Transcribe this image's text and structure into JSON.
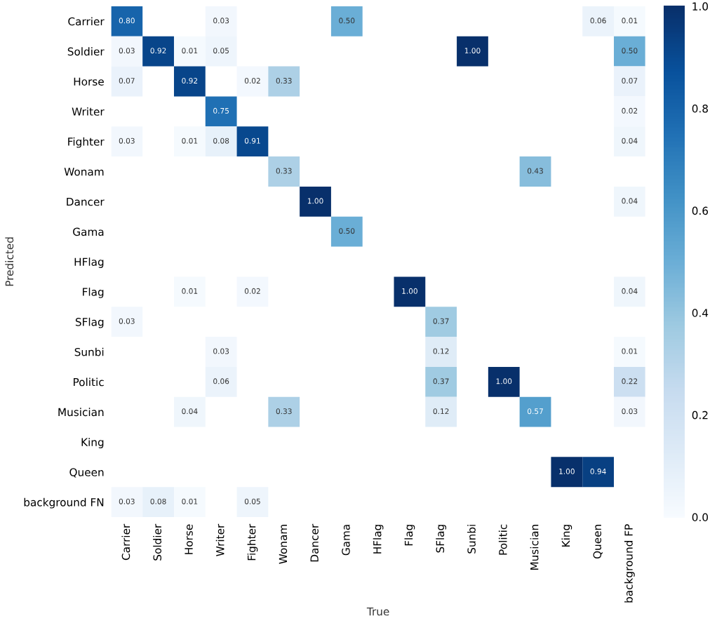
{
  "chart_data": {
    "type": "heatmap",
    "xlabel": "True",
    "ylabel": "Predicted",
    "categories": [
      "Carrier",
      "Soldier",
      "Horse",
      "Writer",
      "Fighter",
      "Wonam",
      "Dancer",
      "Gama",
      "HFlag",
      "Flag",
      "SFlag",
      "Sunbi",
      "Politic",
      "Musician",
      "King",
      "Queen",
      "background FP"
    ],
    "y_categories": [
      "Carrier",
      "Soldier",
      "Horse",
      "Writer",
      "Fighter",
      "Wonam",
      "Dancer",
      "Gama",
      "HFlag",
      "Flag",
      "SFlag",
      "Sunbi",
      "Politic",
      "Musician",
      "King",
      "Queen",
      "background FN"
    ],
    "cells": [
      [
        0.8,
        null,
        null,
        0.03,
        null,
        null,
        null,
        0.5,
        null,
        null,
        null,
        null,
        null,
        null,
        null,
        0.06,
        0.01
      ],
      [
        0.03,
        0.92,
        0.01,
        0.05,
        null,
        null,
        null,
        null,
        null,
        null,
        null,
        1.0,
        null,
        null,
        null,
        null,
        0.5
      ],
      [
        0.07,
        null,
        0.92,
        null,
        0.02,
        0.33,
        null,
        null,
        null,
        null,
        null,
        null,
        null,
        null,
        null,
        null,
        0.07
      ],
      [
        null,
        null,
        null,
        0.75,
        null,
        null,
        null,
        null,
        null,
        null,
        null,
        null,
        null,
        null,
        null,
        null,
        0.02
      ],
      [
        0.03,
        null,
        0.01,
        0.08,
        0.91,
        null,
        null,
        null,
        null,
        null,
        null,
        null,
        null,
        null,
        null,
        null,
        0.04
      ],
      [
        null,
        null,
        null,
        null,
        null,
        0.33,
        null,
        null,
        null,
        null,
        null,
        null,
        null,
        0.43,
        null,
        null,
        null
      ],
      [
        null,
        null,
        null,
        null,
        null,
        null,
        1.0,
        null,
        null,
        null,
        null,
        null,
        null,
        null,
        null,
        null,
        0.04
      ],
      [
        null,
        null,
        null,
        null,
        null,
        null,
        null,
        0.5,
        null,
        null,
        null,
        null,
        null,
        null,
        null,
        null,
        null
      ],
      [
        null,
        null,
        null,
        null,
        null,
        null,
        null,
        null,
        null,
        null,
        null,
        null,
        null,
        null,
        null,
        null,
        null
      ],
      [
        null,
        null,
        0.01,
        null,
        0.02,
        null,
        null,
        null,
        null,
        1.0,
        null,
        null,
        null,
        null,
        null,
        null,
        0.04
      ],
      [
        0.03,
        null,
        null,
        null,
        null,
        null,
        null,
        null,
        null,
        null,
        0.37,
        null,
        null,
        null,
        null,
        null,
        null
      ],
      [
        null,
        null,
        null,
        0.03,
        null,
        null,
        null,
        null,
        null,
        null,
        0.12,
        null,
        null,
        null,
        null,
        null,
        0.01
      ],
      [
        null,
        null,
        null,
        0.06,
        null,
        null,
        null,
        null,
        null,
        null,
        0.37,
        null,
        1.0,
        null,
        null,
        null,
        0.22
      ],
      [
        null,
        null,
        0.04,
        null,
        null,
        0.33,
        null,
        null,
        null,
        null,
        0.12,
        null,
        null,
        0.57,
        null,
        null,
        0.03
      ],
      [
        null,
        null,
        null,
        null,
        null,
        null,
        null,
        null,
        null,
        null,
        null,
        null,
        null,
        null,
        null,
        null,
        null
      ],
      [
        null,
        null,
        null,
        null,
        null,
        null,
        null,
        null,
        null,
        null,
        null,
        null,
        null,
        null,
        1.0,
        0.94,
        null
      ],
      [
        0.03,
        0.08,
        0.01,
        null,
        0.05,
        null,
        null,
        null,
        null,
        null,
        null,
        null,
        null,
        null,
        null,
        null,
        null
      ]
    ],
    "cell_labels": [
      [
        "0.80",
        null,
        null,
        "0.03",
        null,
        null,
        null,
        "0.50",
        null,
        null,
        null,
        null,
        null,
        null,
        null,
        "0.06",
        "0.01"
      ],
      [
        "0.03",
        "0.92",
        "0.01",
        "0.05",
        null,
        null,
        null,
        null,
        null,
        null,
        null,
        "1.00",
        null,
        null,
        null,
        null,
        "0.50"
      ],
      [
        "0.07",
        null,
        "0.92",
        null,
        "0.02",
        "0.33",
        null,
        null,
        null,
        null,
        null,
        null,
        null,
        null,
        null,
        null,
        "0.07"
      ],
      [
        null,
        null,
        null,
        "0.75",
        null,
        null,
        null,
        null,
        null,
        null,
        null,
        null,
        null,
        null,
        null,
        null,
        "0.02"
      ],
      [
        "0.03",
        null,
        "0.01",
        "0.08",
        "0.91",
        null,
        null,
        null,
        null,
        null,
        null,
        null,
        null,
        null,
        null,
        null,
        "0.04"
      ],
      [
        null,
        null,
        null,
        null,
        null,
        "0.33",
        null,
        null,
        null,
        null,
        null,
        null,
        null,
        "0.43",
        null,
        null,
        null
      ],
      [
        null,
        null,
        null,
        null,
        null,
        null,
        "1.00",
        null,
        null,
        null,
        null,
        null,
        null,
        null,
        null,
        null,
        "0.04"
      ],
      [
        null,
        null,
        null,
        null,
        null,
        null,
        null,
        "0.50",
        null,
        null,
        null,
        null,
        null,
        null,
        null,
        null,
        null
      ],
      [
        null,
        null,
        null,
        null,
        null,
        null,
        null,
        null,
        null,
        null,
        null,
        null,
        null,
        null,
        null,
        null,
        null
      ],
      [
        null,
        null,
        "0.01",
        null,
        "0.02",
        null,
        null,
        null,
        null,
        "1.00",
        null,
        null,
        null,
        null,
        null,
        null,
        "0.04"
      ],
      [
        "0.03",
        null,
        null,
        null,
        null,
        null,
        null,
        null,
        null,
        null,
        "0.37",
        null,
        null,
        null,
        null,
        null,
        null
      ],
      [
        null,
        null,
        null,
        "0.03",
        null,
        null,
        null,
        null,
        null,
        null,
        "0.12",
        null,
        null,
        null,
        null,
        null,
        "0.01"
      ],
      [
        null,
        null,
        null,
        "0.06",
        null,
        null,
        null,
        null,
        null,
        null,
        "0.37",
        null,
        "1.00",
        null,
        null,
        null,
        "0.22"
      ],
      [
        null,
        null,
        "0.04",
        null,
        null,
        "0.33",
        null,
        null,
        null,
        null,
        "0.12",
        null,
        null,
        "0.57",
        null,
        null,
        "0.03"
      ],
      [
        null,
        null,
        null,
        null,
        null,
        null,
        null,
        null,
        null,
        null,
        null,
        null,
        null,
        null,
        null,
        null,
        null
      ],
      [
        null,
        null,
        null,
        null,
        null,
        null,
        null,
        null,
        null,
        null,
        null,
        null,
        null,
        null,
        "1.00",
        "0.94",
        null
      ],
      [
        "0.03",
        "0.08",
        "0.01",
        null,
        "0.05",
        null,
        null,
        null,
        null,
        null,
        null,
        null,
        null,
        null,
        null,
        null,
        null
      ]
    ],
    "clim": [
      0,
      1
    ],
    "cticks": [
      {
        "value": 0,
        "label": "0.0"
      },
      {
        "value": 0.2,
        "label": "0.2"
      },
      {
        "value": 0.4,
        "label": "0.4"
      },
      {
        "value": 0.6,
        "label": "0.6"
      },
      {
        "value": 0.8,
        "label": "0.8"
      },
      {
        "value": 1,
        "label": "1.0"
      }
    ]
  }
}
